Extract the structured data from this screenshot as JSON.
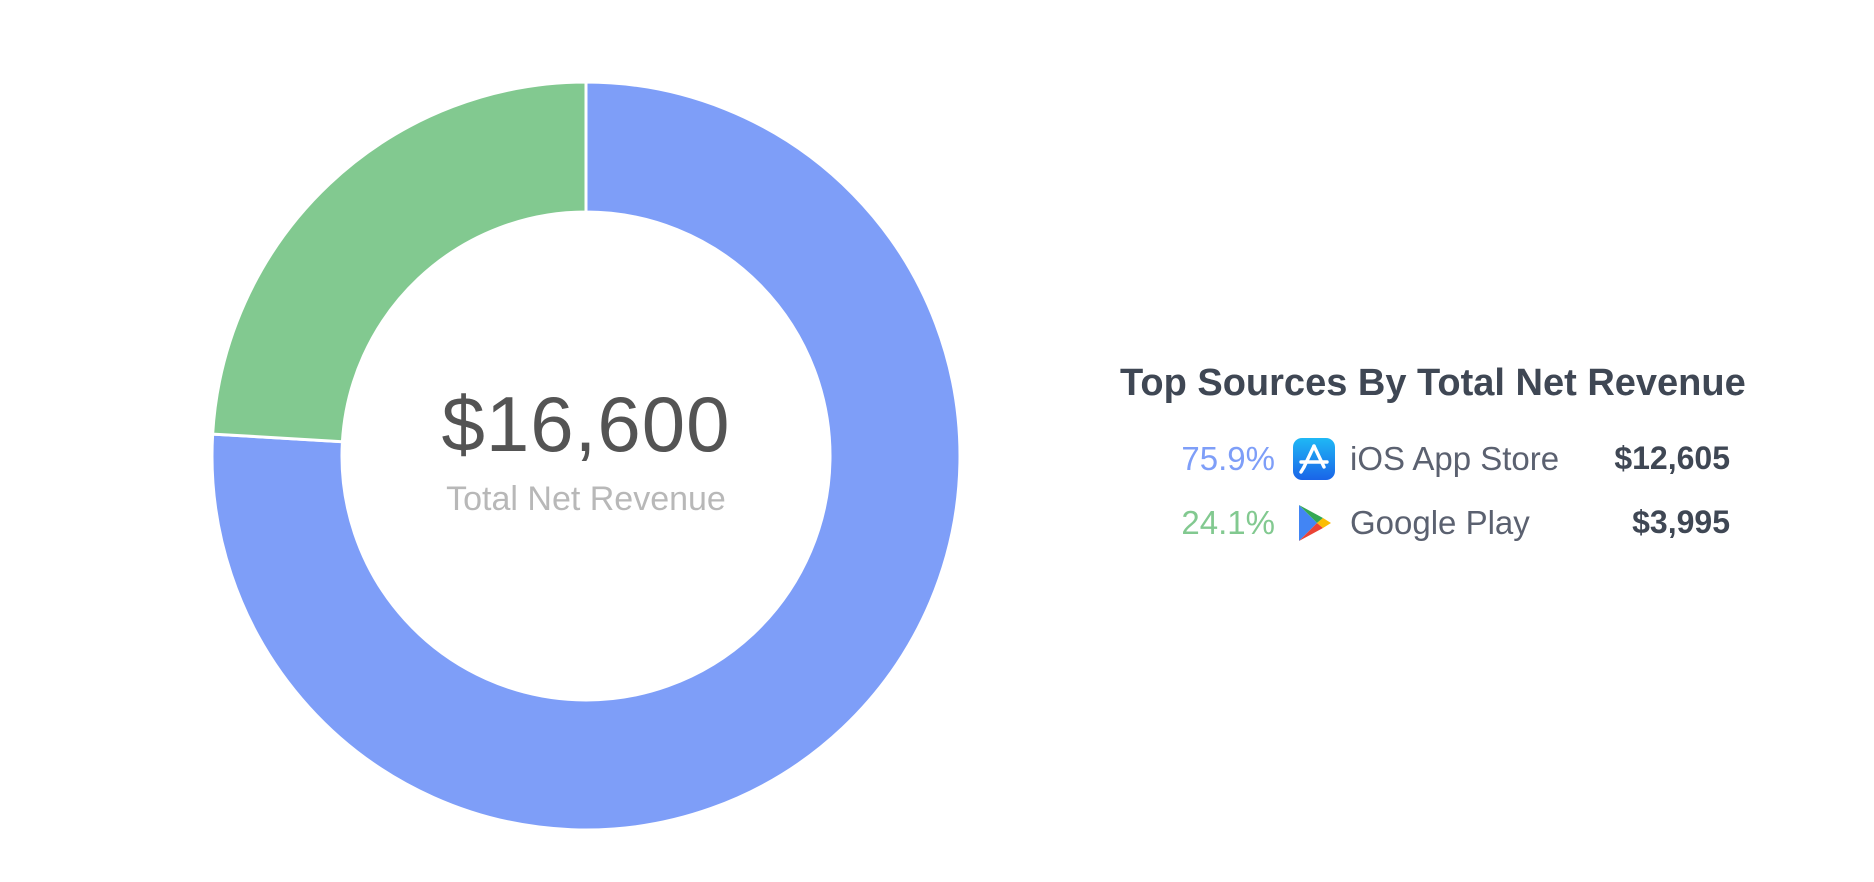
{
  "chart_data": {
    "type": "pie",
    "donut": true,
    "center_total": "$16,600",
    "center_label": "Total Net Revenue",
    "legend_title": "Top Sources By Total Net Revenue",
    "legend_placement": "right",
    "slices": [
      {
        "label": "iOS App Store",
        "value": 12605,
        "value_label": "$12,605",
        "percent": 75.9,
        "percent_label": "75.9%",
        "color": "#7e9ef8",
        "icon": "app-store-icon"
      },
      {
        "label": "Google Play",
        "value": 3995,
        "value_label": "$3,995",
        "percent": 24.1,
        "percent_label": "24.1%",
        "color": "#82c990",
        "icon": "google-play-icon"
      }
    ]
  }
}
